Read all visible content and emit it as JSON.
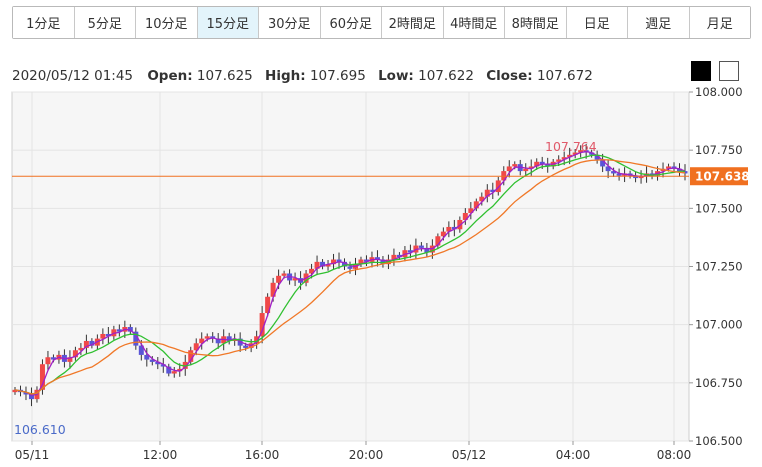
{
  "tabs": [
    {
      "label": "1分足",
      "active": false
    },
    {
      "label": "5分足",
      "active": false
    },
    {
      "label": "10分足",
      "active": false
    },
    {
      "label": "15分足",
      "active": true
    },
    {
      "label": "30分足",
      "active": false
    },
    {
      "label": "60分足",
      "active": false
    },
    {
      "label": "2時間足",
      "active": false
    },
    {
      "label": "4時間足",
      "active": false
    },
    {
      "label": "8時間足",
      "active": false
    },
    {
      "label": "日足",
      "active": false
    },
    {
      "label": "週足",
      "active": false
    },
    {
      "label": "月足",
      "active": false
    }
  ],
  "ohlc": {
    "datetime": "2020/05/12 01:45",
    "open_label": "Open:",
    "open": "107.625",
    "high_label": "High:",
    "high": "107.695",
    "low_label": "Low:",
    "low": "107.622",
    "close_label": "Close:",
    "close": "107.672"
  },
  "colors": {
    "up": "#f04848",
    "down": "#5a55d6",
    "current_price": "#f07020",
    "ma_short": "#a020c8",
    "ma_mid": "#30c030",
    "ma_long": "#f07828"
  },
  "chart_data": {
    "type": "candlestick",
    "ylim": [
      106.5,
      108.0
    ],
    "y_ticks": [
      "108.000",
      "107.750",
      "107.500",
      "107.250",
      "107.000",
      "106.750",
      "106.500"
    ],
    "x_ticks": [
      "05/11",
      "12:00",
      "16:00",
      "20:00",
      "05/12",
      "04:00",
      "08:00"
    ],
    "current_price": 107.638,
    "current_price_label": "107.638",
    "max_label": "107.764",
    "min_label": "106.610",
    "grid": true,
    "series_ma": [
      "short",
      "mid",
      "long"
    ],
    "close_series": [
      106.72,
      106.71,
      106.7,
      106.68,
      106.72,
      106.83,
      106.86,
      106.85,
      106.87,
      106.84,
      106.86,
      106.89,
      106.9,
      106.93,
      106.91,
      106.94,
      106.96,
      106.95,
      106.98,
      106.97,
      106.99,
      106.97,
      106.91,
      106.87,
      106.85,
      106.84,
      106.83,
      106.82,
      106.79,
      106.8,
      106.81,
      106.84,
      106.89,
      106.92,
      106.94,
      106.95,
      106.94,
      106.92,
      106.95,
      106.93,
      106.94,
      106.91,
      106.9,
      106.92,
      106.95,
      107.05,
      107.12,
      107.18,
      107.21,
      107.22,
      107.19,
      107.2,
      107.18,
      107.22,
      107.24,
      107.27,
      107.25,
      107.26,
      107.28,
      107.27,
      107.25,
      107.24,
      107.26,
      107.28,
      107.27,
      107.29,
      107.28,
      107.26,
      107.28,
      107.3,
      107.29,
      107.32,
      107.31,
      107.34,
      107.33,
      107.31,
      107.34,
      107.38,
      107.4,
      107.42,
      107.41,
      107.45,
      107.48,
      107.5,
      107.53,
      107.55,
      107.58,
      107.57,
      107.62,
      107.66,
      107.68,
      107.69,
      107.66,
      107.67,
      107.68,
      107.7,
      107.69,
      107.68,
      107.7,
      107.71,
      107.72,
      107.73,
      107.74,
      107.75,
      107.74,
      107.73,
      107.71,
      107.68,
      107.66,
      107.65,
      107.64,
      107.65,
      107.64,
      107.63,
      107.64,
      107.65,
      107.64,
      107.66,
      107.67,
      107.68,
      107.67,
      107.66,
      107.65
    ]
  }
}
